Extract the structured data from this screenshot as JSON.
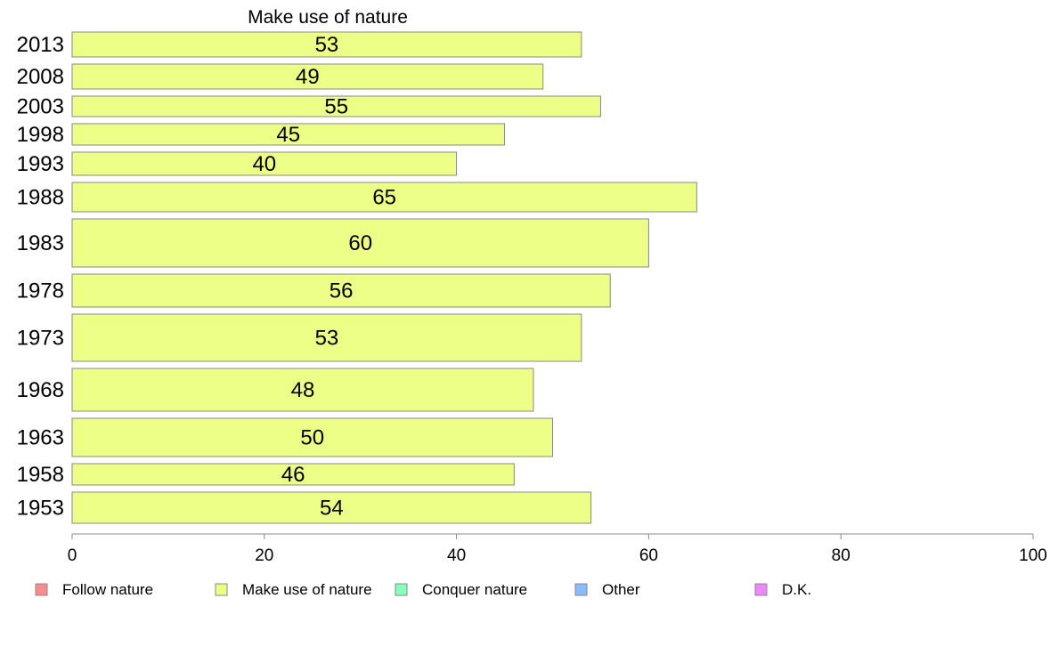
{
  "chart_data": {
    "type": "bar",
    "orientation": "horizontal",
    "title": "Make use of nature",
    "xlabel": "",
    "ylabel": "",
    "xlim": [
      0,
      100
    ],
    "x_ticks": [
      0,
      20,
      40,
      60,
      80,
      100
    ],
    "grid": false,
    "categories": [
      "2013",
      "2008",
      "2003",
      "1998",
      "1993",
      "1988",
      "1983",
      "1978",
      "1973",
      "1968",
      "1963",
      "1958",
      "1953"
    ],
    "series": [
      {
        "name": "Make use of nature",
        "color": "#EEFF88",
        "values": [
          53,
          49,
          55,
          45,
          40,
          65,
          60,
          56,
          53,
          48,
          50,
          46,
          54
        ]
      }
    ],
    "legend": {
      "placement": "bottom",
      "items": [
        {
          "label": "Follow nature",
          "color": "#FF8C8C"
        },
        {
          "label": "Make use of nature",
          "color": "#EEFF88"
        },
        {
          "label": "Conquer nature",
          "color": "#88FFBB"
        },
        {
          "label": "Other",
          "color": "#88BBFF"
        },
        {
          "label": "D.K.",
          "color": "#EE88FF"
        }
      ]
    }
  }
}
